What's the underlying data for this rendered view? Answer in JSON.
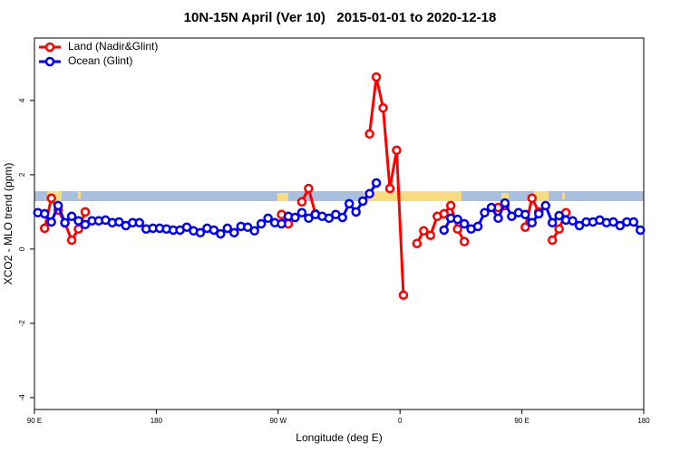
{
  "chart_data": {
    "type": "line",
    "title": "10N-15N April (Ver 10)   2015-01-01 to 2020-12-18",
    "x_label": "Longitude (deg E)",
    "y_label": "XCO2 - MLO trend (ppm)",
    "x": [
      92.5,
      97.5,
      102.5,
      107.5,
      112.5,
      117.5,
      122.5,
      127.5,
      132.5,
      137.5,
      142.5,
      147.5,
      152.5,
      157.5,
      162.5,
      167.5,
      172.5,
      177.5,
      182.5,
      187.5,
      192.5,
      197.5,
      202.5,
      207.5,
      212.5,
      217.5,
      222.5,
      227.5,
      232.5,
      237.5,
      242.5,
      247.5,
      252.5,
      257.5,
      262.5,
      267.5,
      272.5,
      277.5,
      282.5,
      287.5,
      292.5,
      297.5,
      302.5,
      307.5,
      312.5,
      317.5,
      322.5,
      327.5,
      332.5,
      337.5,
      342.5,
      347.5,
      352.5,
      357.5,
      362.5,
      367.5,
      372.5,
      377.5,
      382.5,
      387.5,
      392.5,
      397.5,
      402.5,
      407.5,
      412.5,
      417.5,
      422.5,
      427.5,
      432.5,
      437.5,
      442.5,
      447.5,
      452.5,
      457.5,
      462.5,
      467.5,
      472.5,
      477.5,
      482.5,
      487.5,
      492.5,
      497.5,
      502.5,
      507.5,
      512.5,
      517.5,
      522.5,
      527.5,
      532.5,
      537.5
    ],
    "series": [
      {
        "name": "Land (Nadir&Glint)",
        "color": "#ff0000",
        "values": [
          null,
          0.56,
          1.37,
          1.05,
          0.7,
          0.24,
          0.54,
          1.0,
          null,
          null,
          null,
          null,
          null,
          null,
          null,
          null,
          null,
          null,
          null,
          null,
          null,
          null,
          null,
          null,
          null,
          null,
          null,
          null,
          null,
          null,
          null,
          null,
          null,
          null,
          null,
          null,
          0.93,
          0.68,
          null,
          1.27,
          1.63,
          0.95,
          null,
          null,
          null,
          null,
          null,
          null,
          null,
          3.1,
          4.63,
          3.8,
          1.63,
          2.66,
          -1.24,
          null,
          0.15,
          0.49,
          0.37,
          0.88,
          0.95,
          1.17,
          0.54,
          0.2,
          null,
          null,
          null,
          null,
          1.12,
          1.17,
          null,
          null,
          0.59,
          1.37,
          1.0,
          null,
          0.24,
          0.54,
          0.98,
          null,
          null,
          null,
          null,
          null,
          null,
          null,
          null,
          null,
          null,
          null
        ]
      },
      {
        "name": "Ocean (Glint)",
        "color": "#0000ff",
        "values": [
          0.98,
          0.95,
          0.73,
          1.17,
          0.71,
          0.88,
          0.76,
          0.66,
          0.76,
          0.76,
          0.78,
          0.71,
          0.73,
          0.63,
          0.71,
          0.71,
          0.54,
          0.56,
          0.56,
          0.54,
          0.51,
          0.51,
          0.59,
          0.49,
          0.44,
          0.56,
          0.51,
          0.41,
          0.56,
          0.44,
          0.61,
          0.59,
          0.49,
          0.68,
          0.83,
          0.71,
          0.68,
          0.88,
          0.85,
          0.98,
          0.83,
          0.93,
          0.88,
          0.83,
          0.93,
          0.85,
          1.22,
          1.0,
          1.29,
          1.49,
          1.78,
          null,
          null,
          null,
          null,
          null,
          null,
          null,
          null,
          null,
          0.51,
          0.83,
          0.8,
          0.68,
          0.54,
          0.61,
          0.98,
          1.12,
          0.83,
          1.24,
          0.88,
          0.98,
          0.93,
          0.71,
          0.95,
          1.17,
          0.71,
          0.9,
          0.78,
          0.76,
          0.63,
          0.73,
          0.73,
          0.78,
          0.71,
          0.73,
          0.63,
          0.73,
          0.73,
          0.51
        ]
      }
    ],
    "xlim": [
      90,
      540
    ],
    "xticks": [
      {
        "value": 90,
        "label": "90 E"
      },
      180,
      {
        "value": 270,
        "label": "90 W"
      },
      {
        "value": 360,
        "label": "0"
      },
      {
        "value": 450,
        "label": "90 E"
      },
      {
        "value": 540,
        "label": "180"
      }
    ],
    "ylim": [
      -4.32,
      5.68
    ],
    "yticks": [
      -4,
      -2,
      0,
      2,
      4
    ],
    "legend": "topleft"
  }
}
